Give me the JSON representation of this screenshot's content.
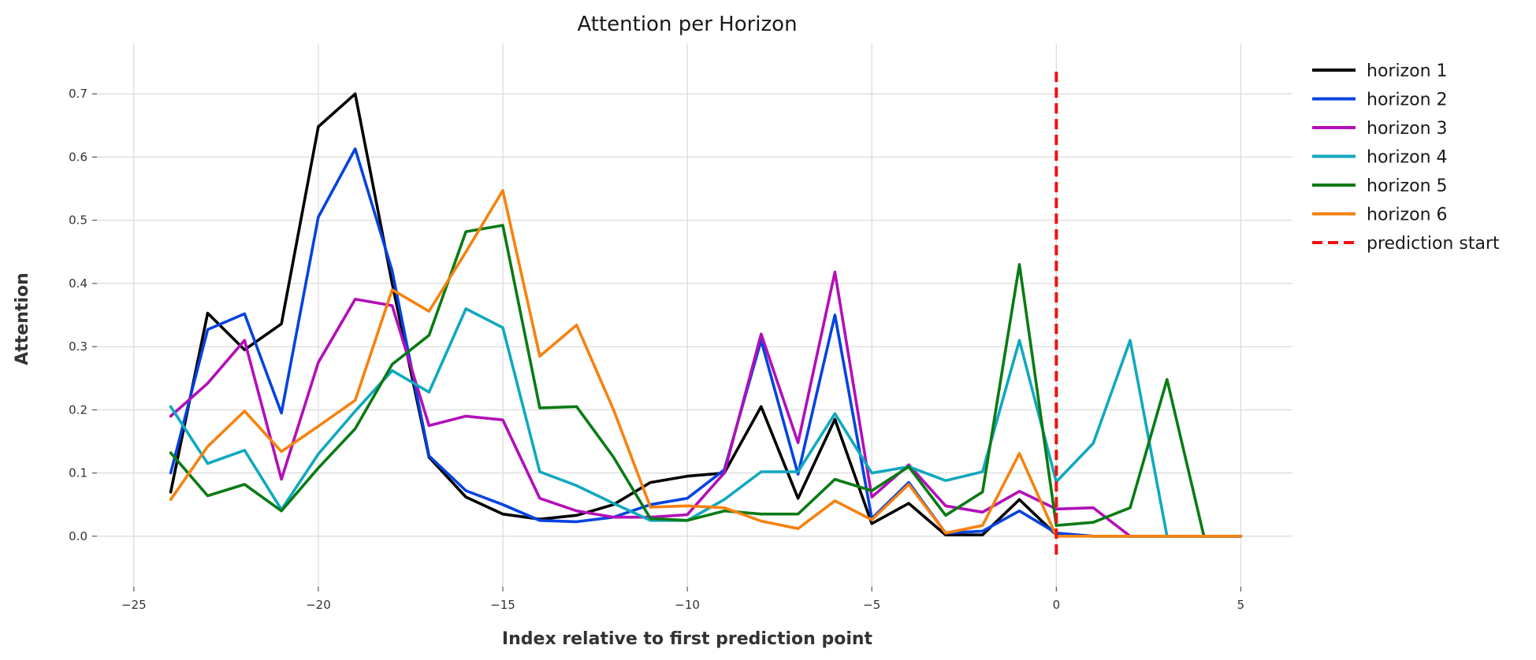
{
  "chart_data": {
    "type": "line",
    "title": "Attention per Horizon",
    "xlabel": "Index relative to first prediction point",
    "ylabel": "Attention",
    "xlim": [
      -26,
      6.4
    ],
    "ylim": [
      -0.08,
      0.78
    ],
    "x_ticks": [
      -25,
      -20,
      -15,
      -10,
      -5,
      0,
      5
    ],
    "x_tick_labels": [
      "−25",
      "−20",
      "−15",
      "−10",
      "−5",
      "0",
      "5"
    ],
    "y_ticks": [
      0.0,
      0.1,
      0.2,
      0.3,
      0.4,
      0.5,
      0.6,
      0.7
    ],
    "y_tick_labels": [
      "0.0",
      "0.1",
      "0.2",
      "0.3",
      "0.4",
      "0.5",
      "0.6",
      "0.7"
    ],
    "grid": true,
    "legend_position": "outside-right-top",
    "x": [
      -24,
      -23,
      -22,
      -21,
      -20,
      -19,
      -18,
      -17,
      -16,
      -15,
      -14,
      -13,
      -12,
      -11,
      -10,
      -9,
      -8,
      -7,
      -6,
      -5,
      -4,
      -3,
      -2,
      -1,
      0,
      1,
      2,
      3,
      4,
      5
    ],
    "series": [
      {
        "name": "horizon 1",
        "color": "#000000",
        "values": [
          0.07,
          0.353,
          0.295,
          0.336,
          0.648,
          0.7,
          0.4,
          0.125,
          0.062,
          0.035,
          0.027,
          0.033,
          0.05,
          0.085,
          0.095,
          0.1,
          0.205,
          0.06,
          0.185,
          0.02,
          0.052,
          0.002,
          0.002,
          0.058,
          0.002,
          0.0,
          0.0,
          0.0,
          0.0,
          0.0
        ]
      },
      {
        "name": "horizon 2",
        "color": "#0343df",
        "values": [
          0.1,
          0.327,
          0.352,
          0.195,
          0.505,
          0.613,
          0.42,
          0.127,
          0.072,
          0.05,
          0.025,
          0.023,
          0.03,
          0.05,
          0.06,
          0.105,
          0.31,
          0.098,
          0.35,
          0.028,
          0.085,
          0.005,
          0.008,
          0.04,
          0.005,
          0.0,
          0.0,
          0.0,
          0.0,
          0.0
        ]
      },
      {
        "name": "horizon 3",
        "color": "#b20fb8",
        "values": [
          0.19,
          0.242,
          0.31,
          0.09,
          0.275,
          0.375,
          0.365,
          0.175,
          0.19,
          0.184,
          0.06,
          0.04,
          0.03,
          0.03,
          0.034,
          0.1,
          0.32,
          0.148,
          0.418,
          0.062,
          0.113,
          0.048,
          0.038,
          0.071,
          0.043,
          0.045,
          0.0,
          0.0,
          0.0,
          0.0
        ]
      },
      {
        "name": "horizon 4",
        "color": "#11a8bf",
        "values": [
          0.205,
          0.115,
          0.136,
          0.042,
          0.13,
          0.198,
          0.262,
          0.228,
          0.36,
          0.33,
          0.102,
          0.08,
          0.052,
          0.025,
          0.025,
          0.058,
          0.102,
          0.102,
          0.194,
          0.1,
          0.11,
          0.088,
          0.102,
          0.31,
          0.086,
          0.147,
          0.31,
          0.0,
          0.0,
          0.0
        ]
      },
      {
        "name": "horizon 5",
        "color": "#0a7b14",
        "values": [
          0.132,
          0.064,
          0.082,
          0.04,
          0.108,
          0.17,
          0.272,
          0.318,
          0.482,
          0.492,
          0.203,
          0.205,
          0.125,
          0.028,
          0.025,
          0.04,
          0.035,
          0.035,
          0.09,
          0.072,
          0.11,
          0.033,
          0.07,
          0.43,
          0.017,
          0.022,
          0.045,
          0.248,
          0.0,
          0.0
        ]
      },
      {
        "name": "horizon 6",
        "color": "#f5820f",
        "values": [
          0.058,
          0.142,
          0.198,
          0.134,
          0.174,
          0.215,
          0.39,
          0.356,
          0.45,
          0.547,
          0.285,
          0.334,
          0.2,
          0.046,
          0.048,
          0.045,
          0.024,
          0.012,
          0.056,
          0.026,
          0.082,
          0.005,
          0.017,
          0.131,
          0.0,
          0.0,
          0.0,
          0.0,
          0.0,
          0.0
        ]
      }
    ],
    "vertical_line": {
      "name": "prediction start",
      "x": 0,
      "y_range": [
        -0.035,
        0.735
      ],
      "color": "#ee1111",
      "style": "dashed"
    }
  }
}
